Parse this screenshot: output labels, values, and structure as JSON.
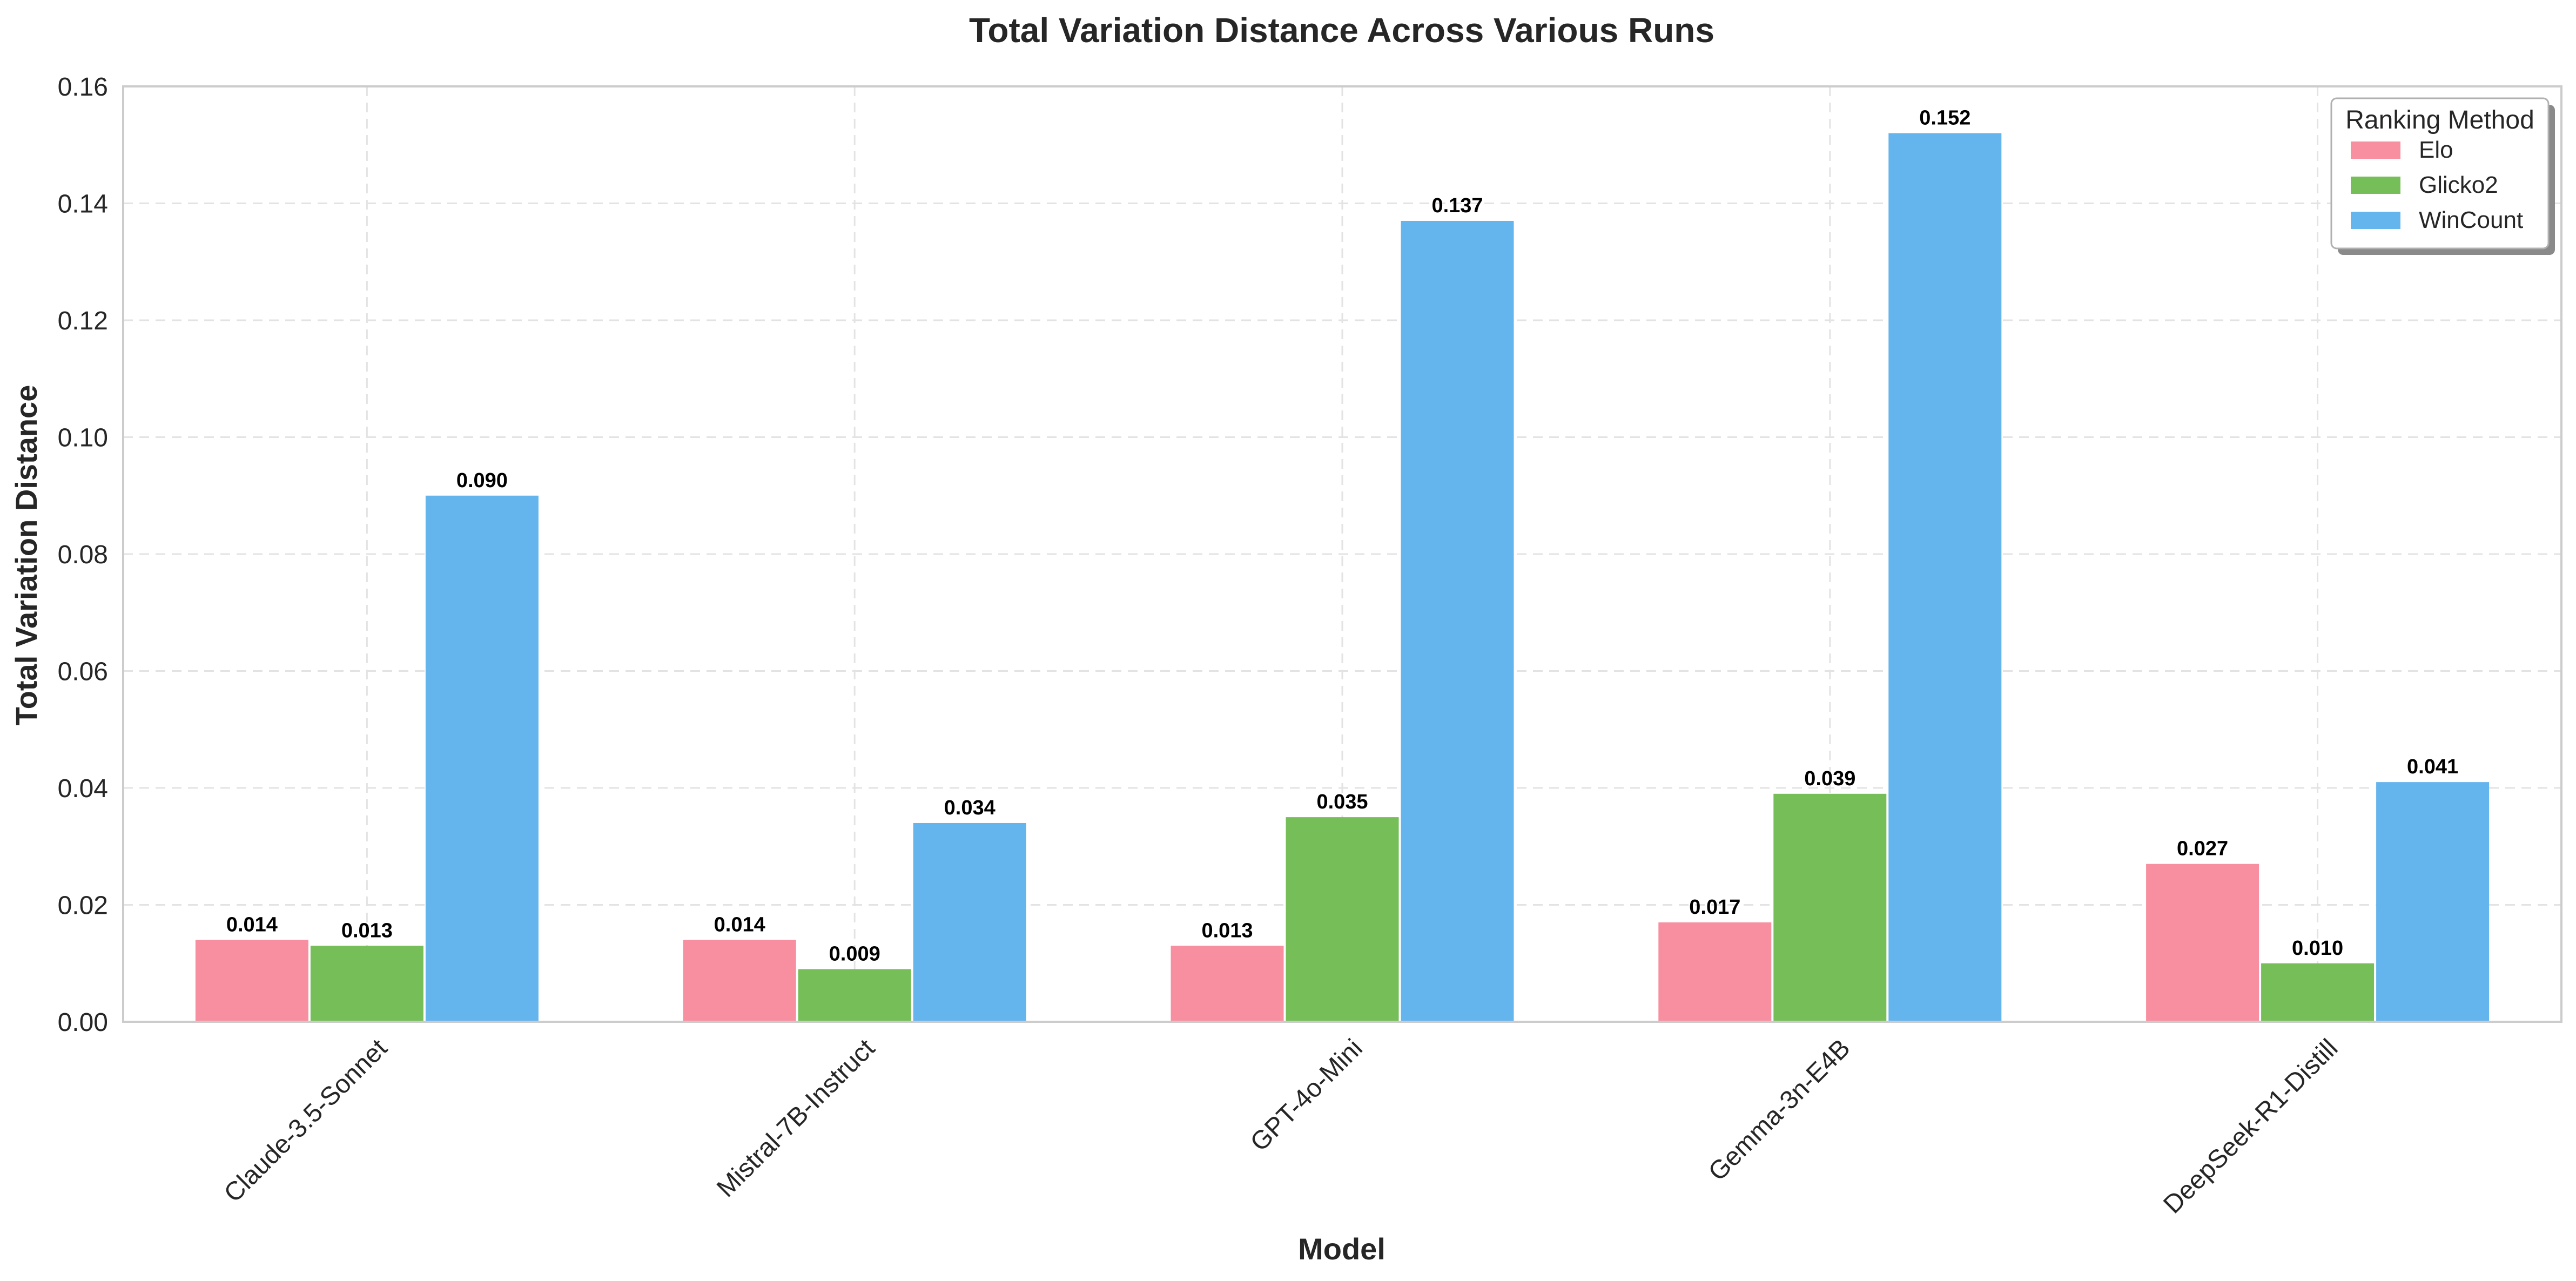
{
  "chart_data": {
    "type": "bar",
    "title": "Total Variation Distance Across Various Runs",
    "xlabel": "Model",
    "ylabel": "Total Variation Distance",
    "ylim": [
      0,
      0.16
    ],
    "yticks": [
      0.0,
      0.02,
      0.04,
      0.06,
      0.08,
      0.1,
      0.12,
      0.14,
      0.16
    ],
    "grid": true,
    "legend": {
      "title": "Ranking Method",
      "placement": "top-right"
    },
    "categories": [
      "Claude-3.5-Sonnet",
      "Mistral-7B-Instruct",
      "GPT-4o-Mini",
      "Gemma-3n-E4B",
      "DeepSeek-R1-Distill"
    ],
    "series": [
      {
        "name": "Elo",
        "color": "#f78fa0",
        "values": [
          0.014,
          0.014,
          0.013,
          0.017,
          0.027
        ],
        "labels": [
          "0.014",
          "0.014",
          "0.013",
          "0.017",
          "0.027"
        ]
      },
      {
        "name": "Glicko2",
        "color": "#75be58",
        "values": [
          0.013,
          0.009,
          0.035,
          0.039,
          0.01
        ],
        "labels": [
          "0.013",
          "0.009",
          "0.035",
          "0.039",
          "0.010"
        ]
      },
      {
        "name": "WinCount",
        "color": "#64b4ed",
        "values": [
          0.09,
          0.034,
          0.137,
          0.152,
          0.041
        ],
        "labels": [
          "0.090",
          "0.034",
          "0.137",
          "0.152",
          "0.041"
        ]
      }
    ]
  }
}
